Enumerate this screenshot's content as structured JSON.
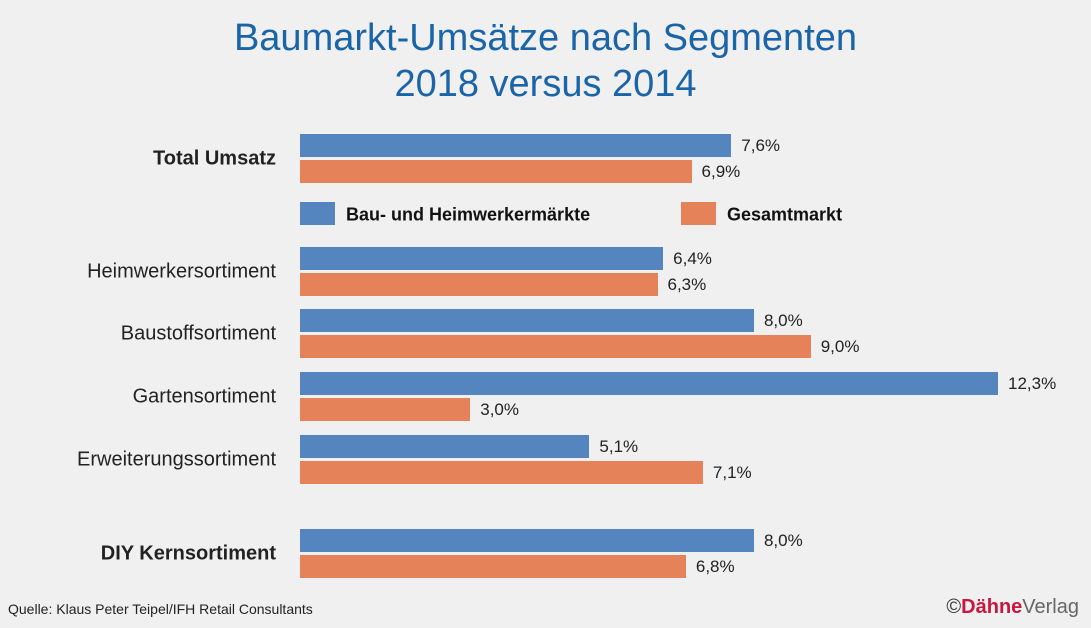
{
  "chart_data": {
    "type": "bar",
    "orientation": "horizontal",
    "title": "Baumarkt-Umsätze nach Segmenten",
    "subtitle": "2018 versus 2014",
    "categories": [
      "Total Umsatz",
      "Heimwerkersortiment",
      "Baustoffsortiment",
      "Gartensortiment",
      "Erweiterungssortiment",
      "DIY Kernsortiment"
    ],
    "bold_categories": [
      "Total Umsatz",
      "DIY Kernsortiment"
    ],
    "series": [
      {
        "name": "Bau- und Heimwerkermärkte",
        "color": "#5585bf",
        "values": [
          7.6,
          6.4,
          8.0,
          12.3,
          5.1,
          8.0
        ],
        "labels": [
          "7,6%",
          "6,4%",
          "8,0%",
          "12,3%",
          "5,1%",
          "8,0%"
        ]
      },
      {
        "name": "Gesamtmarkt",
        "color": "#e5825a",
        "values": [
          6.9,
          6.3,
          9.0,
          3.0,
          7.1,
          6.8
        ],
        "labels": [
          "6,9%",
          "6,3%",
          "9,0%",
          "3,0%",
          "7,1%",
          "6,8%"
        ]
      }
    ],
    "legend_position": "below first group",
    "grid": false
  },
  "source": "Quelle: Klaus Peter Teipel/IFH Retail Consultants",
  "logo": {
    "symbol": "©",
    "brand": "Dähne",
    "suffix": "Verlag"
  }
}
